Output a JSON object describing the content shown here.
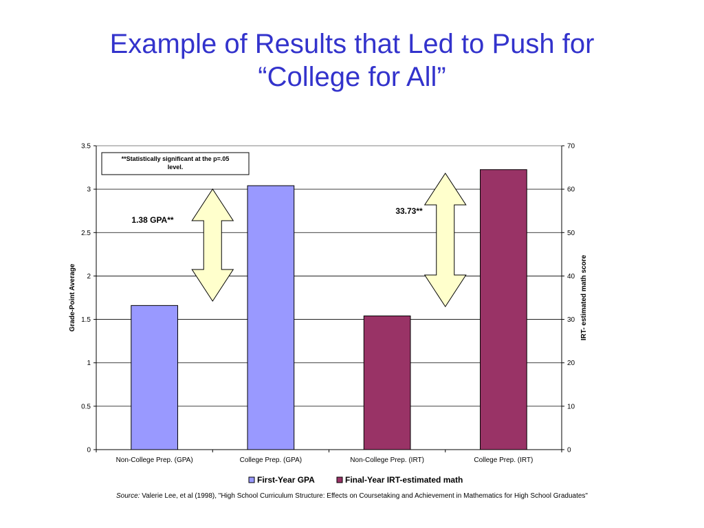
{
  "slide": {
    "title_line1": "Example of Results that Led to Push for",
    "title_line2": "“College for All”",
    "title_color": "#3333cc"
  },
  "chart_data": {
    "type": "bar",
    "categories": [
      "Non-College Prep. (GPA)",
      "College Prep. (GPA)",
      "Non-College Prep. (IRT)",
      "College Prep. (IRT)"
    ],
    "series": [
      {
        "name": "First-Year GPA",
        "axis": "left",
        "color": "#9999ff",
        "values": [
          1.66,
          3.04,
          null,
          null
        ]
      },
      {
        "name": "Final-Year IRT-estimated math",
        "axis": "right",
        "color": "#993366",
        "values": [
          null,
          null,
          30.8,
          64.5
        ]
      }
    ],
    "ylabel": "Grade-Point Average",
    "y2label": "IRT- estimated math score",
    "ylim": [
      0,
      3.5
    ],
    "y2lim": [
      0,
      70
    ],
    "yticks": [
      "0",
      "0.5",
      "1",
      "1.5",
      "2",
      "2.5",
      "3",
      "3.5"
    ],
    "y2ticks": [
      "0",
      "10",
      "20",
      "30",
      "40",
      "50",
      "60",
      "70"
    ],
    "grid": true,
    "legend_position": "bottom",
    "note": "**Statistically significant at the p=.05 level.",
    "annotations": [
      {
        "text": "1.38 GPA**",
        "between": [
          0,
          1
        ]
      },
      {
        "text": "33.73**",
        "between": [
          2,
          3
        ]
      }
    ],
    "arrow_color": "#ffffcc"
  },
  "source": {
    "label": "Source:",
    "text": "Valerie Lee, et al (1998), \"High School Curriculum Structure: Effects on Coursetaking and Achievement in Mathematics for High School Graduates\""
  }
}
